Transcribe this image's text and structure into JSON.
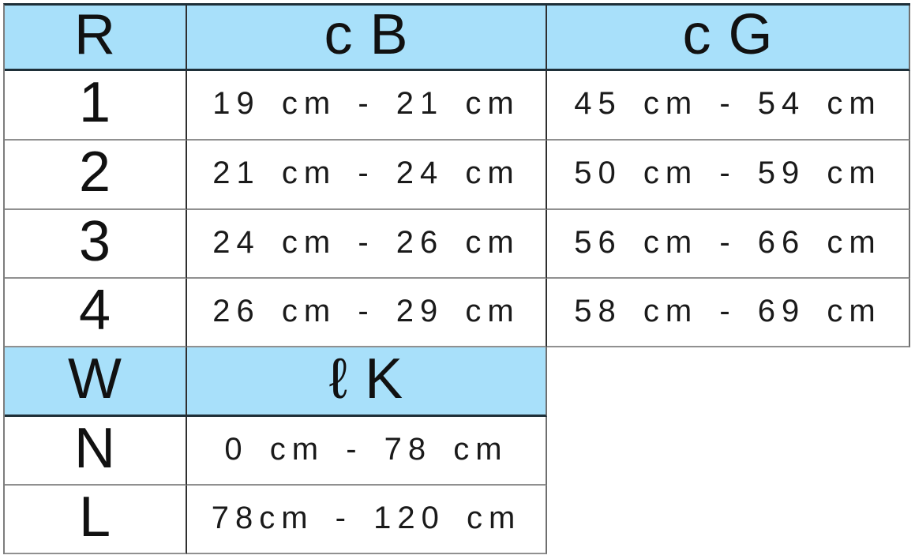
{
  "colors": {
    "header_bg": "#a8e0fa",
    "border_dark": "#1e2f38",
    "border_vertical": "#2f2f2f",
    "border_row": "#909090",
    "text": "#111111"
  },
  "size_table": {
    "headers": [
      "R",
      "c B",
      "c G"
    ],
    "rows": [
      {
        "size": "1",
        "cb_range": "19 cm - 21 cm",
        "cg_range": "45 cm - 54 cm"
      },
      {
        "size": "2",
        "cb_range": "21 cm - 24 cm",
        "cg_range": "50 cm - 59 cm"
      },
      {
        "size": "3",
        "cb_range": "24 cm - 26 cm",
        "cg_range": "56 cm - 66 cm"
      },
      {
        "size": "4",
        "cb_range": "26 cm - 29 cm",
        "cg_range": "58 cm - 69 cm"
      }
    ]
  },
  "length_table": {
    "headers": [
      "W",
      "ℓ K"
    ],
    "rows": [
      {
        "size": "N",
        "lk_range": "0 cm - 78 cm"
      },
      {
        "size": "L",
        "lk_range": "78cm - 120 cm"
      }
    ]
  }
}
